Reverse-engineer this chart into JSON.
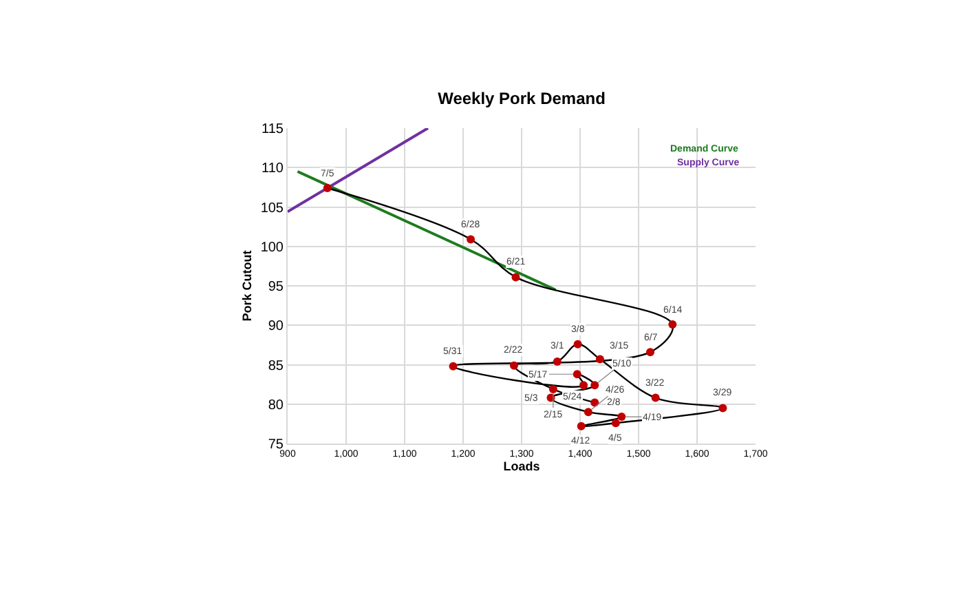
{
  "chart_data": {
    "type": "line",
    "title": "Weekly Pork Demand",
    "xlabel": "Loads",
    "ylabel": "Pork Cutout",
    "xlim": [
      900,
      1700
    ],
    "xticks": [
      900,
      {
        "value": 1000,
        "label": "1,000"
      },
      {
        "value": 1100,
        "label": "1,100"
      },
      {
        "value": 1200,
        "label": "1,200"
      },
      {
        "value": 1300,
        "label": "1,300"
      },
      {
        "value": 1400,
        "label": "1,400"
      },
      {
        "value": 1500,
        "label": "1,500"
      },
      {
        "value": 1600,
        "label": "1,600"
      },
      {
        "value": 1700,
        "label": "1,700"
      }
    ],
    "ylim": [
      75,
      115
    ],
    "yticks": [
      75,
      80,
      85,
      90,
      95,
      100,
      105,
      110,
      115
    ],
    "grid": true,
    "legend": "top right",
    "annotations": [
      {
        "text": "2/8",
        "x": 1425,
        "y": 80.2
      },
      {
        "text": "2/15",
        "x": 1354,
        "y": 81.9
      },
      {
        "text": "2/22",
        "x": 1287,
        "y": 84.9
      },
      {
        "text": "3/1",
        "x": 1361,
        "y": 85.4
      },
      {
        "text": "3/8",
        "x": 1396,
        "y": 87.6
      },
      {
        "text": "3/15",
        "x": 1434,
        "y": 85.7
      },
      {
        "text": "3/22",
        "x": 1529,
        "y": 80.8
      },
      {
        "text": "3/29",
        "x": 1644,
        "y": 79.5
      },
      {
        "text": "4/5",
        "x": 1461,
        "y": 77.6
      },
      {
        "text": "4/12",
        "x": 1402,
        "y": 77.2
      },
      {
        "text": "4/19",
        "x": 1471,
        "y": 78.4
      },
      {
        "text": "4/26",
        "x": 1414,
        "y": 79.0
      },
      {
        "text": "5/3",
        "x": 1350,
        "y": 80.8
      },
      {
        "text": "5/10",
        "x": 1425,
        "y": 82.4
      },
      {
        "text": "5/17",
        "x": 1395,
        "y": 83.8
      },
      {
        "text": "5/24",
        "x": 1406,
        "y": 82.4
      },
      {
        "text": "5/31",
        "x": 1183,
        "y": 84.8
      },
      {
        "text": "6/7",
        "x": 1520,
        "y": 86.6
      },
      {
        "text": "6/14",
        "x": 1558,
        "y": 90.1
      },
      {
        "text": "6/21",
        "x": 1290,
        "y": 96.1
      },
      {
        "text": "6/28",
        "x": 1213,
        "y": 100.9
      },
      {
        "text": "7/5",
        "x": 968,
        "y": 107.4
      }
    ],
    "series": [
      {
        "color": "#000000",
        "marker": "circle",
        "line_style": "solid",
        "colors": [
          "#c00000",
          "#c00000",
          "#c00000",
          "#c00000",
          "#c00000",
          "#c00000",
          "#c00000",
          "#c00000",
          "#c00000",
          "#c00000",
          "#c00000",
          "#c00000",
          "#c00000",
          "#c00000",
          "#c00000",
          "#c00000",
          "#c00000",
          "#c00000",
          "#c00000",
          "#c00000",
          "#c00000",
          "#c00000"
        ],
        "x": [
          1425,
          1354,
          1287,
          1361,
          1396,
          1434,
          1529,
          1644,
          1461,
          1402,
          1471,
          1414,
          1350,
          1425,
          1395,
          1406,
          1183,
          1520,
          1558,
          1290,
          1213,
          968
        ],
        "values": [
          80.2,
          81.9,
          84.9,
          85.4,
          87.6,
          85.7,
          80.8,
          79.5,
          77.6,
          77.2,
          78.4,
          79.0,
          80.8,
          82.4,
          83.8,
          82.4,
          84.8,
          86.6,
          90.1,
          96.1,
          100.9,
          107.4
        ]
      },
      {
        "name": "Demand Curve",
        "color": "#1e7b1e",
        "marker": "none",
        "x": [
          917,
          1358
        ],
        "values": [
          109.5,
          94.5
        ]
      },
      {
        "name": "Supply Curve",
        "color": "#7030a0",
        "marker": "none",
        "x": [
          900,
          1140
        ],
        "values": [
          104.4,
          115
        ]
      }
    ]
  }
}
